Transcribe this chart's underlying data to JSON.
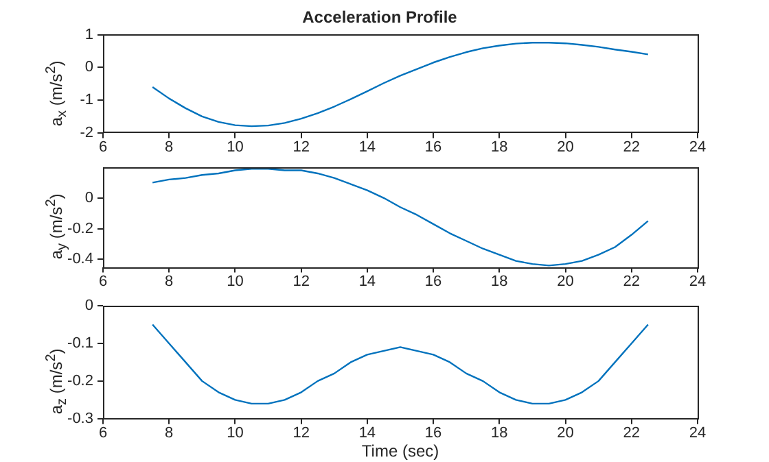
{
  "chart_data": [
    {
      "type": "line",
      "title": "Acceleration Profile",
      "ylabel": "a$_{x}$ (m/s$^{2}$)",
      "x": [
        7.5,
        8,
        8.5,
        9,
        9.5,
        10,
        10.5,
        11,
        11.5,
        12,
        12.5,
        13,
        13.5,
        14,
        14.5,
        15,
        15.5,
        16,
        16.5,
        17,
        17.5,
        18,
        18.5,
        19,
        19.5,
        20,
        20.5,
        21,
        21.5,
        22,
        22.5
      ],
      "series": [
        {
          "color": "#0072bd",
          "values": [
            -0.6,
            -0.95,
            -1.25,
            -1.5,
            -1.67,
            -1.77,
            -1.8,
            -1.78,
            -1.7,
            -1.57,
            -1.4,
            -1.2,
            -0.97,
            -0.73,
            -0.48,
            -0.25,
            -0.05,
            0.15,
            0.32,
            0.47,
            0.59,
            0.67,
            0.73,
            0.76,
            0.76,
            0.74,
            0.69,
            0.63,
            0.55,
            0.48,
            0.4
          ]
        }
      ],
      "xlim": [
        6,
        24
      ],
      "xticks": [
        6,
        8,
        10,
        12,
        14,
        16,
        18,
        20,
        22,
        24
      ],
      "ylim": [
        -2,
        1
      ],
      "yticks": [
        -2,
        -1,
        0,
        1
      ]
    },
    {
      "type": "line",
      "ylabel": "a$_{y}$ (m/s$^{2}$)",
      "x": [
        7.5,
        8,
        8.5,
        9,
        9.5,
        10,
        10.5,
        11,
        11.5,
        12,
        12.5,
        13,
        13.5,
        14,
        14.5,
        15,
        15.5,
        16,
        16.5,
        17,
        17.5,
        18,
        18.5,
        19,
        19.5,
        20,
        20.5,
        21,
        21.5,
        22,
        22.5
      ],
      "series": [
        {
          "color": "#0072bd",
          "values": [
            0.1,
            0.12,
            0.13,
            0.15,
            0.16,
            0.18,
            0.19,
            0.19,
            0.18,
            0.18,
            0.16,
            0.13,
            0.09,
            0.05,
            0.0,
            -0.06,
            -0.11,
            -0.17,
            -0.23,
            -0.28,
            -0.33,
            -0.37,
            -0.41,
            -0.43,
            -0.44,
            -0.43,
            -0.41,
            -0.37,
            -0.32,
            -0.24,
            -0.15
          ]
        }
      ],
      "xlim": [
        6,
        24
      ],
      "xticks": [
        6,
        8,
        10,
        12,
        14,
        16,
        18,
        20,
        22,
        24
      ],
      "ylim": [
        -0.45,
        0.2
      ],
      "yticks": [
        -0.4,
        -0.2,
        0
      ]
    },
    {
      "type": "line",
      "ylabel": "a$_{z}$ (m/s$^{2}$)",
      "xlabel": "Time (sec)",
      "x": [
        7.5,
        8,
        8.5,
        9,
        9.5,
        10,
        10.5,
        11,
        11.5,
        12,
        12.5,
        13,
        13.5,
        14,
        14.5,
        15,
        15.5,
        16,
        16.5,
        17,
        17.5,
        18,
        18.5,
        19,
        19.5,
        20,
        20.5,
        21,
        21.5,
        22,
        22.5
      ],
      "series": [
        {
          "color": "#0072bd",
          "values": [
            -0.05,
            -0.1,
            -0.15,
            -0.2,
            -0.23,
            -0.25,
            -0.26,
            -0.26,
            -0.25,
            -0.23,
            -0.2,
            -0.18,
            -0.15,
            -0.13,
            -0.12,
            -0.11,
            -0.12,
            -0.13,
            -0.15,
            -0.18,
            -0.2,
            -0.23,
            -0.25,
            -0.26,
            -0.26,
            -0.25,
            -0.23,
            -0.2,
            -0.15,
            -0.1,
            -0.05
          ]
        }
      ],
      "xlim": [
        6,
        24
      ],
      "xticks": [
        6,
        8,
        10,
        12,
        14,
        16,
        18,
        20,
        22,
        24
      ],
      "ylim": [
        -0.3,
        0
      ],
      "yticks": [
        -0.3,
        -0.2,
        -0.1,
        0
      ]
    }
  ]
}
